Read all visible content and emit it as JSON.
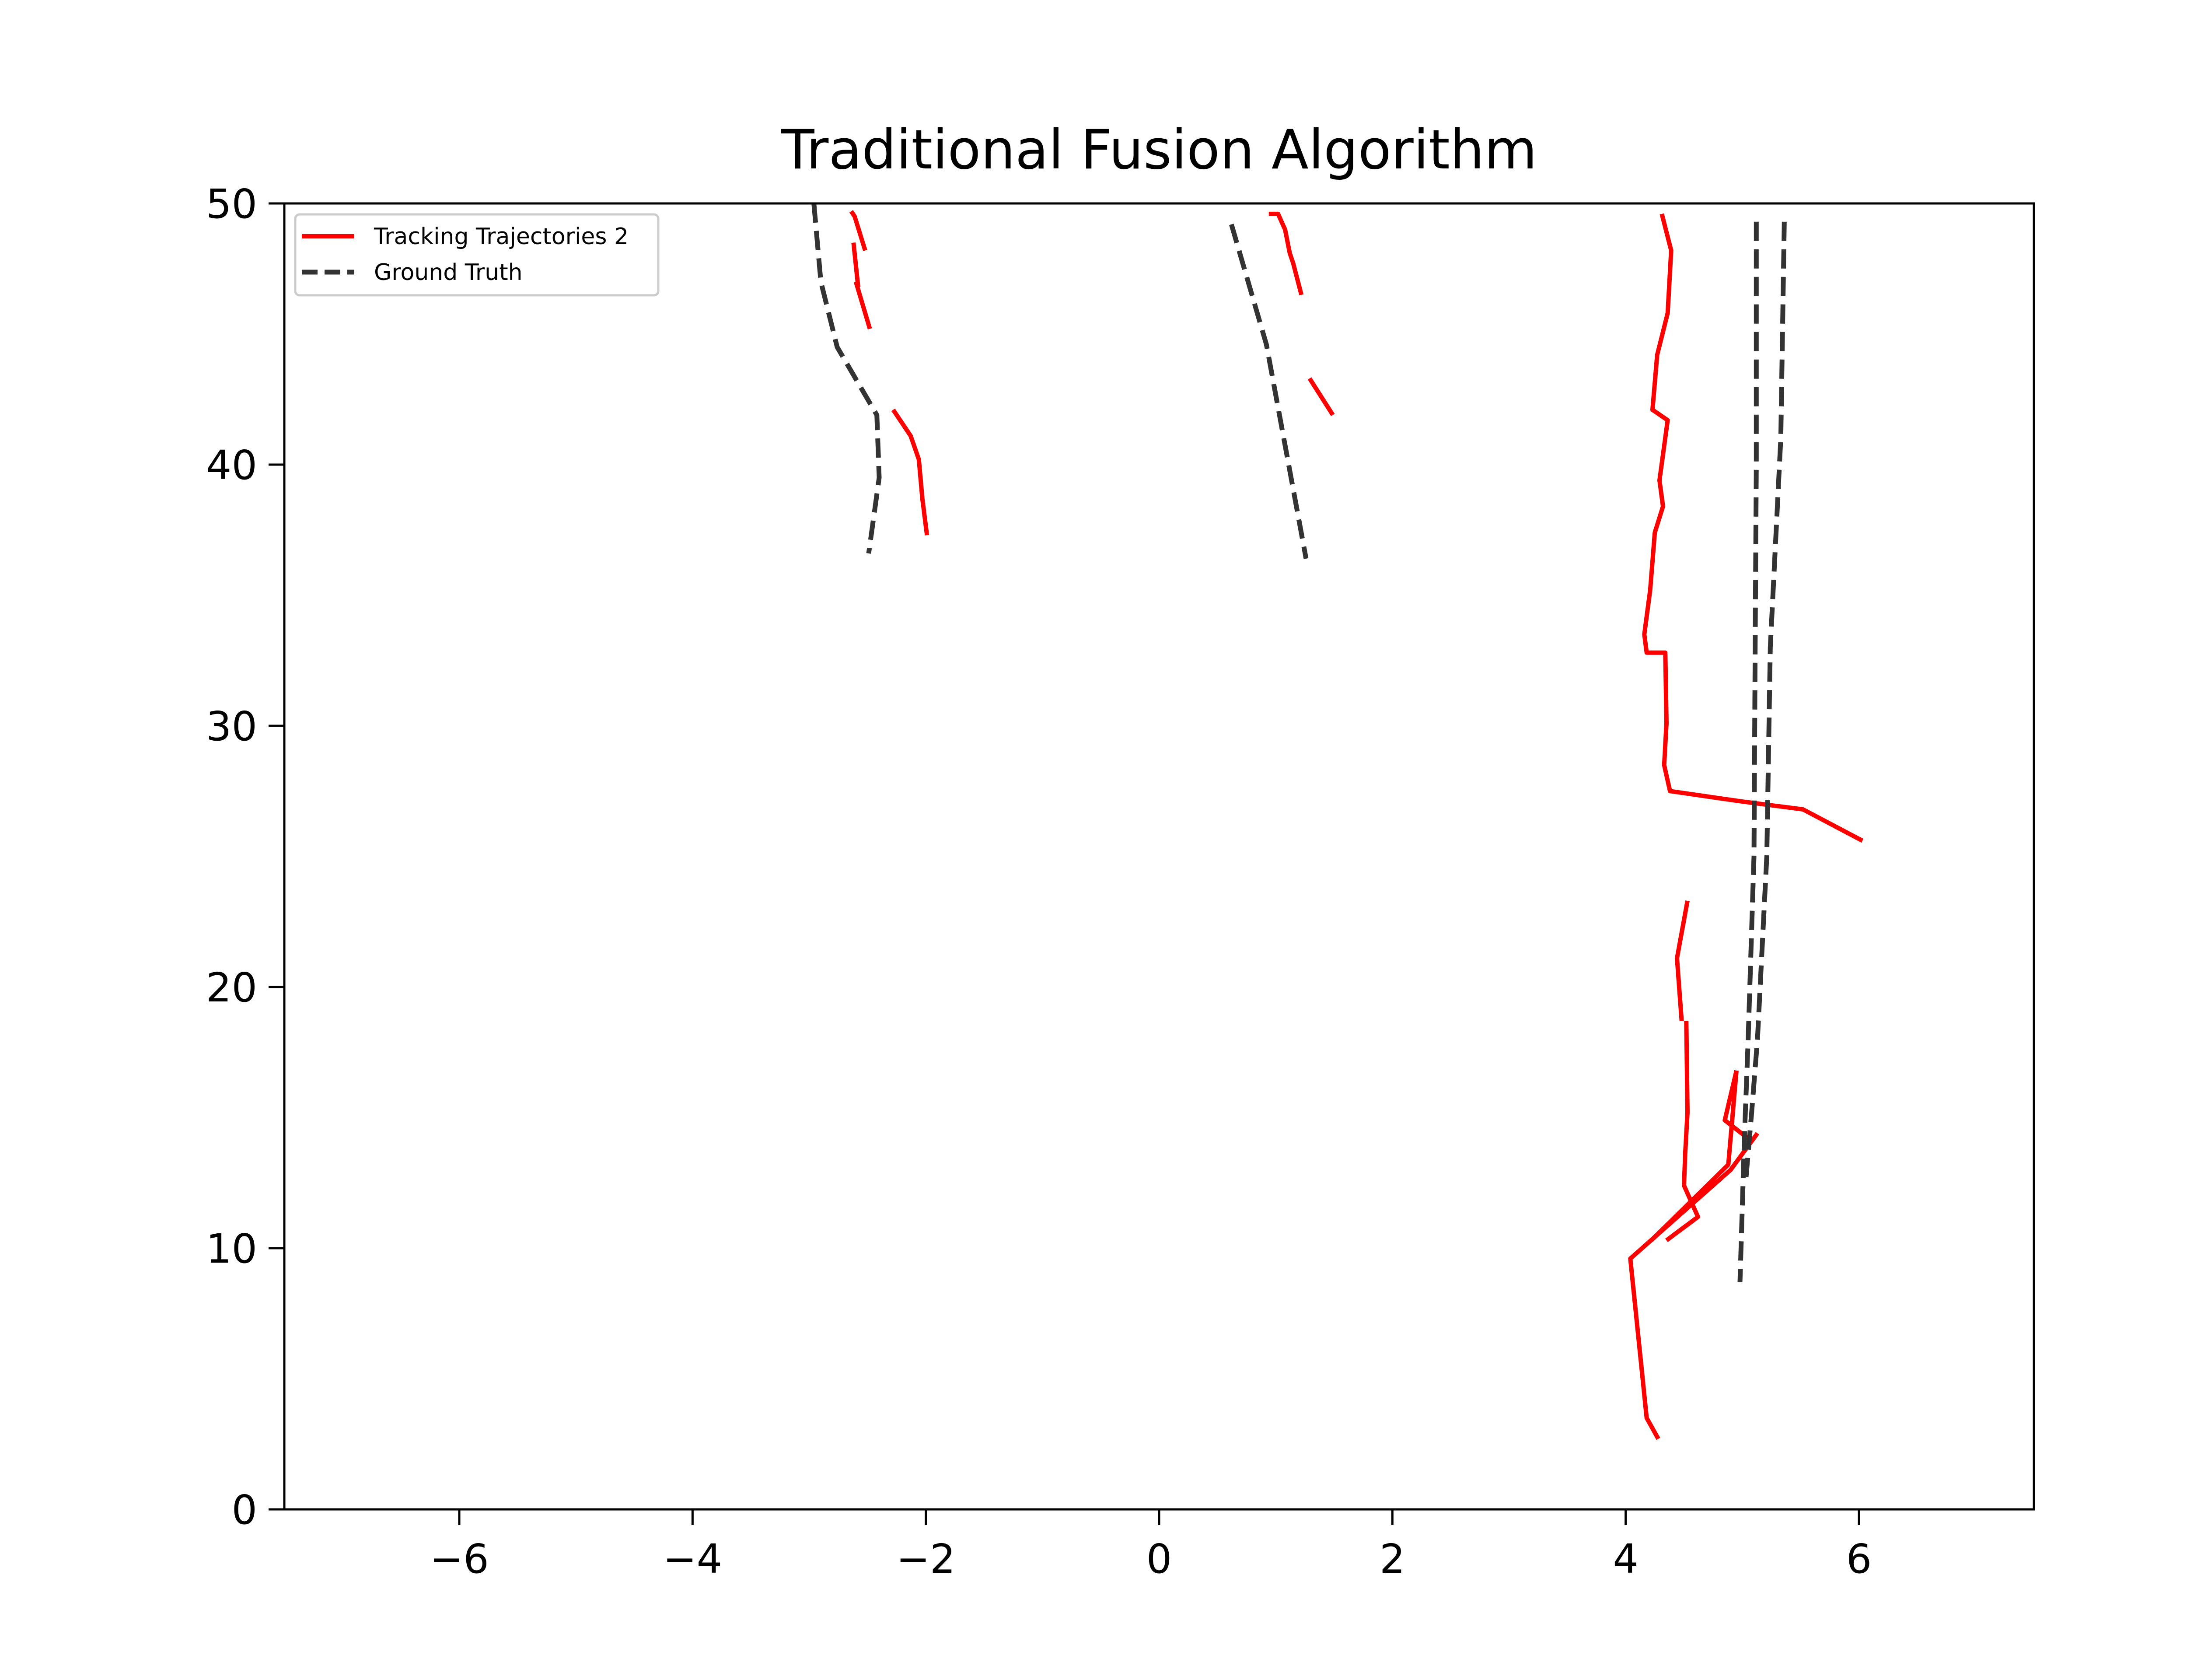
{
  "chart_data": {
    "type": "line",
    "title": "Traditional Fusion Algorithm",
    "xlabel": "",
    "ylabel": "",
    "xlim": [
      -7.5,
      7.5
    ],
    "ylim": [
      0,
      50
    ],
    "xticks": [
      -6,
      -4,
      -2,
      0,
      2,
      4,
      6
    ],
    "yticks": [
      0,
      10,
      20,
      30,
      40,
      50
    ],
    "xtick_labels": [
      "−6",
      "−4",
      "−2",
      "0",
      "2",
      "4",
      "6"
    ],
    "ytick_labels": [
      "0",
      "10",
      "20",
      "30",
      "40",
      "50"
    ],
    "grid": false,
    "legend_position": "top-left",
    "legend": [
      {
        "label": "Tracking Trajectories 2",
        "color": "#ff0000",
        "style": "solid"
      },
      {
        "label": "Ground Truth",
        "color": "#333333",
        "style": "dashed"
      }
    ],
    "series": [
      {
        "name": "Tracking Trajectories 2",
        "color": "#ff0000",
        "style": "solid",
        "segments": [
          [
            [
              -2.64,
              49.7
            ],
            [
              -2.61,
              49.5
            ],
            [
              -2.52,
              48.2
            ]
          ],
          [
            [
              -2.62,
              48.5
            ],
            [
              -2.58,
              46.8
            ]
          ],
          [
            [
              -2.6,
              47.0
            ],
            [
              -2.48,
              45.2
            ]
          ],
          [
            [
              -2.28,
              42.1
            ],
            [
              -2.13,
              41.1
            ],
            [
              -2.06,
              40.2
            ],
            [
              -2.03,
              38.7
            ],
            [
              -1.99,
              37.3
            ]
          ],
          [
            [
              0.94,
              49.6
            ],
            [
              1.02,
              49.6
            ],
            [
              1.08,
              49.0
            ],
            [
              1.12,
              48.1
            ],
            [
              1.15,
              47.7
            ],
            [
              1.22,
              46.5
            ]
          ],
          [
            [
              1.29,
              43.3
            ],
            [
              1.49,
              41.9
            ]
          ],
          [
            [
              4.31,
              49.6
            ],
            [
              4.39,
              48.2
            ],
            [
              4.36,
              45.8
            ],
            [
              4.27,
              44.2
            ],
            [
              4.23,
              42.1
            ],
            [
              4.36,
              41.7
            ],
            [
              4.29,
              39.4
            ],
            [
              4.32,
              38.4
            ],
            [
              4.25,
              37.4
            ],
            [
              4.21,
              35.2
            ],
            [
              4.16,
              33.5
            ],
            [
              4.18,
              32.8
            ],
            [
              4.34,
              32.8
            ],
            [
              4.35,
              30.1
            ],
            [
              4.33,
              28.5
            ],
            [
              4.38,
              27.5
            ],
            [
              5.0,
              27.1
            ],
            [
              5.52,
              26.8
            ],
            [
              6.03,
              25.6
            ]
          ],
          [
            [
              4.53,
              23.3
            ],
            [
              4.44,
              21.1
            ],
            [
              4.48,
              18.7
            ]
          ],
          [
            [
              4.52,
              18.7
            ],
            [
              4.53,
              15.2
            ],
            [
              4.51,
              13.6
            ],
            [
              4.5,
              12.4
            ],
            [
              4.62,
              11.2
            ],
            [
              4.35,
              10.3
            ]
          ],
          [
            [
              4.95,
              16.8
            ],
            [
              4.85,
              14.9
            ],
            [
              5.05,
              14.2
            ]
          ],
          [
            [
              4.95,
              16.8
            ],
            [
              4.88,
              13.2
            ],
            [
              4.22,
              10.3
            ]
          ],
          [
            [
              5.13,
              14.4
            ],
            [
              4.9,
              13.0
            ],
            [
              4.04,
              9.6
            ],
            [
              4.18,
              3.5
            ],
            [
              4.28,
              2.7
            ]
          ]
        ]
      },
      {
        "name": "Ground Truth",
        "color": "#333333",
        "style": "dashed",
        "segments": [
          [
            [
              -2.96,
              50.0
            ],
            [
              -2.9,
              47.0
            ],
            [
              -2.76,
              44.5
            ],
            [
              -2.42,
              41.9
            ],
            [
              -2.4,
              39.5
            ],
            [
              -2.49,
              36.6
            ]
          ],
          [
            [
              0.62,
              49.2
            ],
            [
              0.92,
              44.6
            ],
            [
              1.26,
              36.4
            ]
          ],
          [
            [
              5.12,
              49.3
            ],
            [
              5.12,
              40.0
            ],
            [
              5.11,
              33.0
            ],
            [
              5.1,
              25.0
            ],
            [
              5.05,
              18.0
            ],
            [
              5.02,
              14.5
            ],
            [
              4.98,
              8.7
            ]
          ],
          [
            [
              5.36,
              49.3
            ],
            [
              5.33,
              41.0
            ],
            [
              5.24,
              33.0
            ],
            [
              5.21,
              25.0
            ],
            [
              5.13,
              18.0
            ],
            [
              5.08,
              15.2
            ],
            [
              5.03,
              12.6
            ]
          ]
        ]
      }
    ]
  }
}
